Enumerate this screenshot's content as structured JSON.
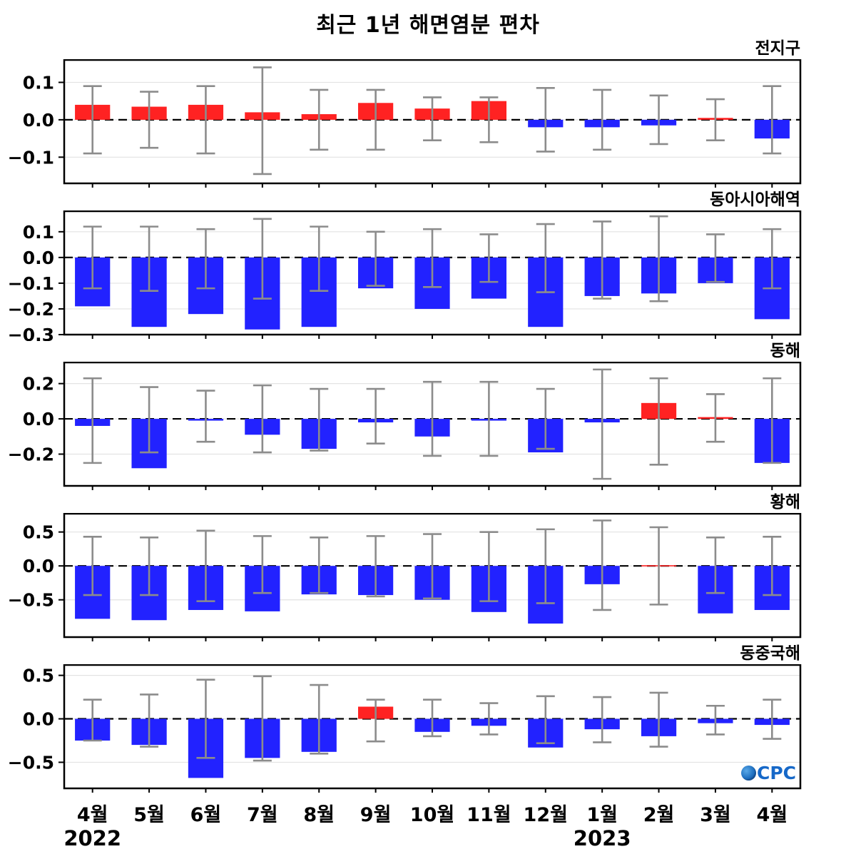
{
  "title": "최근 1년 해면염분 편차",
  "x_axis": {
    "month_labels": [
      "4월",
      "5월",
      "6월",
      "7월",
      "8월",
      "9월",
      "10월",
      "11월",
      "12월",
      "1월",
      "2월",
      "3월",
      "4월"
    ],
    "year_labels": [
      {
        "label": "2022",
        "month_index": 0
      },
      {
        "label": "2023",
        "month_index": 9
      }
    ]
  },
  "colors": {
    "positive": "#ff2222",
    "negative": "#2222ff",
    "error_bar": "#8c8c8c",
    "zero_line": "#000000",
    "grid": "#e3e3e3",
    "frame": "#000000"
  },
  "logo": {
    "text": "OCPC",
    "color": "#1668c8"
  },
  "chart_data": [
    {
      "type": "bar",
      "region": "전지구",
      "categories": [
        "4월",
        "5월",
        "6월",
        "7월",
        "8월",
        "9월",
        "10월",
        "11월",
        "12월",
        "1월",
        "2월",
        "3월",
        "4월"
      ],
      "values": [
        0.04,
        0.035,
        0.04,
        0.02,
        0.015,
        0.045,
        0.03,
        0.05,
        -0.02,
        -0.02,
        -0.015,
        0.005,
        -0.05
      ],
      "err_top": [
        0.09,
        0.075,
        0.09,
        0.14,
        0.08,
        0.08,
        0.06,
        0.06,
        0.085,
        0.08,
        0.065,
        0.055,
        0.09
      ],
      "err_bot": [
        0.09,
        0.075,
        0.09,
        0.145,
        0.08,
        0.08,
        0.055,
        0.06,
        0.085,
        0.08,
        0.065,
        0.055,
        0.09
      ],
      "ylim": [
        -0.17,
        0.16
      ],
      "yticks": [
        0.1,
        0.0,
        -0.1
      ],
      "grid": true,
      "legend": "none"
    },
    {
      "type": "bar",
      "region": "동아시아해역",
      "categories": [
        "4월",
        "5월",
        "6월",
        "7월",
        "8월",
        "9월",
        "10월",
        "11월",
        "12월",
        "1월",
        "2월",
        "3월",
        "4월"
      ],
      "values": [
        -0.19,
        -0.27,
        -0.22,
        -0.28,
        -0.27,
        -0.12,
        -0.2,
        -0.16,
        -0.27,
        -0.15,
        -0.14,
        -0.1,
        -0.24
      ],
      "err_top": [
        0.12,
        0.12,
        0.11,
        0.15,
        0.12,
        0.1,
        0.11,
        0.09,
        0.13,
        0.14,
        0.16,
        0.09,
        0.11
      ],
      "err_bot": [
        0.12,
        0.13,
        0.12,
        0.16,
        0.13,
        0.11,
        0.115,
        0.095,
        0.135,
        0.16,
        0.17,
        0.095,
        0.12
      ],
      "ylim": [
        -0.3,
        0.18
      ],
      "yticks": [
        0.1,
        0.0,
        -0.1,
        -0.2,
        -0.3
      ],
      "grid": true,
      "legend": "none"
    },
    {
      "type": "bar",
      "region": "동해",
      "categories": [
        "4월",
        "5월",
        "6월",
        "7월",
        "8월",
        "9월",
        "10월",
        "11월",
        "12월",
        "1월",
        "2월",
        "3월",
        "4월"
      ],
      "values": [
        -0.04,
        -0.28,
        -0.01,
        -0.09,
        -0.17,
        -0.02,
        -0.1,
        -0.01,
        -0.19,
        -0.02,
        0.09,
        0.01,
        -0.25
      ],
      "err_top": [
        0.23,
        0.18,
        0.16,
        0.19,
        0.17,
        0.17,
        0.21,
        0.21,
        0.17,
        0.28,
        0.23,
        0.14,
        0.23
      ],
      "err_bot": [
        0.25,
        0.19,
        0.13,
        0.19,
        0.18,
        0.14,
        0.21,
        0.21,
        0.17,
        0.34,
        0.26,
        0.13,
        0.25
      ],
      "ylim": [
        -0.38,
        0.32
      ],
      "yticks": [
        0.2,
        0.0,
        -0.2
      ],
      "grid": true,
      "legend": "none"
    },
    {
      "type": "bar",
      "region": "황해",
      "categories": [
        "4월",
        "5월",
        "6월",
        "7월",
        "8월",
        "9월",
        "10월",
        "11월",
        "12월",
        "1월",
        "2월",
        "3월",
        "4월"
      ],
      "values": [
        -0.78,
        -0.8,
        -0.65,
        -0.67,
        -0.42,
        -0.43,
        -0.5,
        -0.68,
        -0.85,
        -0.27,
        0.01,
        -0.7,
        -0.65
      ],
      "err_top": [
        0.43,
        0.42,
        0.52,
        0.44,
        0.42,
        0.44,
        0.47,
        0.5,
        0.54,
        0.67,
        0.57,
        0.42,
        0.43
      ],
      "err_bot": [
        0.43,
        0.43,
        0.52,
        0.4,
        0.4,
        0.45,
        0.48,
        0.52,
        0.55,
        0.65,
        0.57,
        0.4,
        0.43
      ],
      "ylim": [
        -1.05,
        0.77
      ],
      "yticks": [
        0.5,
        0.0,
        -0.5
      ],
      "grid": true,
      "legend": "none"
    },
    {
      "type": "bar",
      "region": "동중국해",
      "categories": [
        "4월",
        "5월",
        "6월",
        "7월",
        "8월",
        "9월",
        "10월",
        "11월",
        "12월",
        "1월",
        "2월",
        "3월",
        "4월"
      ],
      "values": [
        -0.25,
        -0.3,
        -0.68,
        -0.45,
        -0.38,
        0.14,
        -0.15,
        -0.08,
        -0.33,
        -0.12,
        -0.2,
        -0.05,
        -0.07
      ],
      "err_top": [
        0.22,
        0.28,
        0.45,
        0.49,
        0.39,
        0.22,
        0.22,
        0.18,
        0.26,
        0.25,
        0.3,
        0.15,
        0.22
      ],
      "err_bot": [
        0.25,
        0.32,
        0.45,
        0.48,
        0.4,
        0.26,
        0.2,
        0.18,
        0.28,
        0.27,
        0.32,
        0.18,
        0.23
      ],
      "ylim": [
        -0.8,
        0.62
      ],
      "yticks": [
        0.5,
        0.0,
        -0.5
      ],
      "grid": true,
      "legend": "none"
    }
  ]
}
